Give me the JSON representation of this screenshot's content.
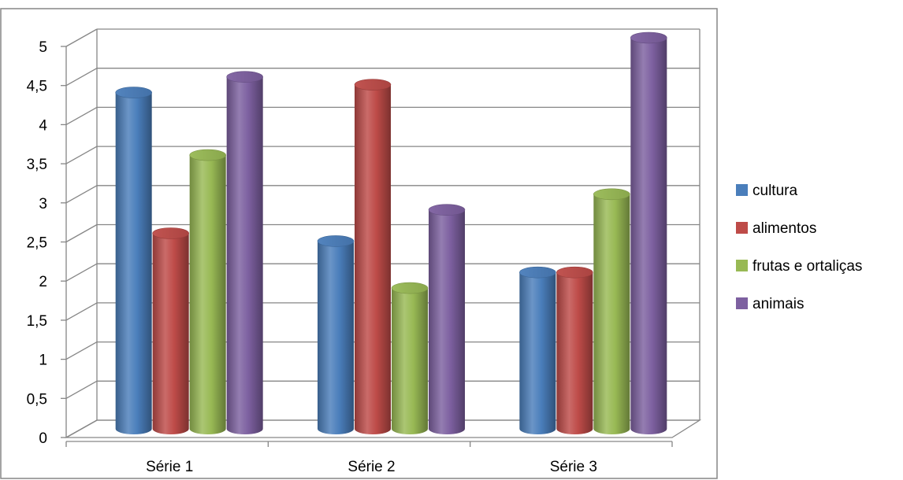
{
  "chart_data": {
    "type": "bar",
    "style": "3d-cylinder",
    "title": "",
    "xlabel": "",
    "ylabel": "",
    "categories": [
      "Série 1",
      "Série 2",
      "Série 3"
    ],
    "series": [
      {
        "name": "cultura",
        "color": "#4a7ebb",
        "values": [
          4.3,
          2.4,
          2.0
        ]
      },
      {
        "name": "alimentos",
        "color": "#be4b48",
        "values": [
          2.5,
          4.4,
          2.0
        ]
      },
      {
        "name": "frutas  e ortaliças",
        "color": "#98b954",
        "values": [
          3.5,
          1.8,
          3.0
        ]
      },
      {
        "name": "animais",
        "color": "#7d60a0",
        "values": [
          4.5,
          2.8,
          5.0
        ]
      }
    ],
    "ylim": [
      0,
      5
    ],
    "yticks": [
      "0",
      "0,5",
      "1",
      "1,5",
      "2",
      "2,5",
      "3",
      "3,5",
      "4",
      "4,5",
      "5"
    ],
    "grid": true,
    "legend_position": "right"
  }
}
